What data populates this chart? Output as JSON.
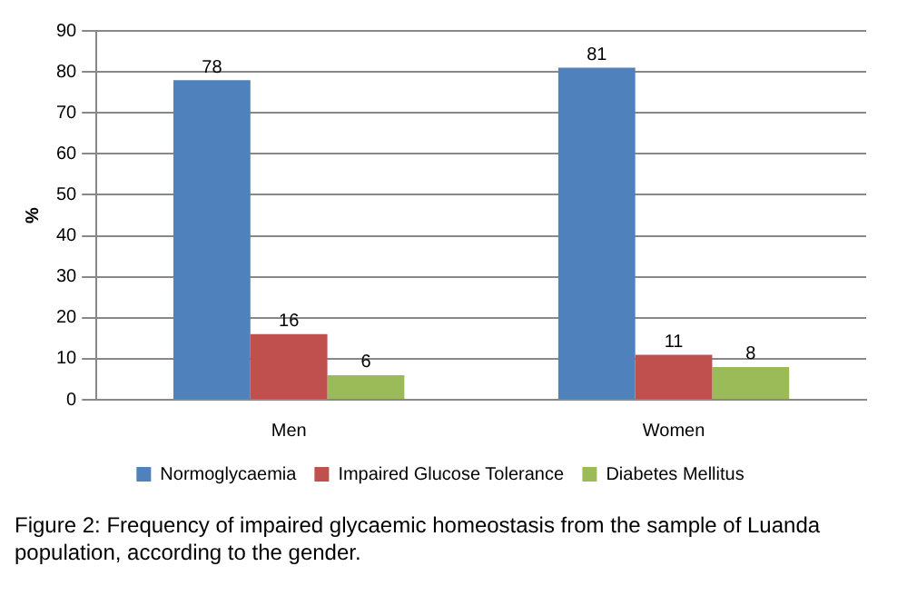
{
  "chart_data": {
    "type": "bar",
    "categories": [
      "Men",
      "Women"
    ],
    "series": [
      {
        "name": "Normoglycaemia",
        "color": "#4f81bd",
        "values": [
          78,
          81
        ]
      },
      {
        "name": "Impaired Glucose Tolerance",
        "color": "#c0504d",
        "values": [
          16,
          11
        ]
      },
      {
        "name": "Diabetes Mellitus",
        "color": "#9bbb59",
        "values": [
          6,
          8
        ]
      }
    ],
    "ylabel": "%",
    "ylim": [
      0,
      90
    ],
    "yticks": [
      0,
      10,
      20,
      30,
      40,
      50,
      60,
      70,
      80,
      90
    ],
    "grid": "y",
    "legend": "bottom",
    "data_labels": true,
    "annotations": [
      "Figure 2: Frequency of impaired glycaemic homeostasis from the sample of Luanda population, according to the gender."
    ]
  }
}
